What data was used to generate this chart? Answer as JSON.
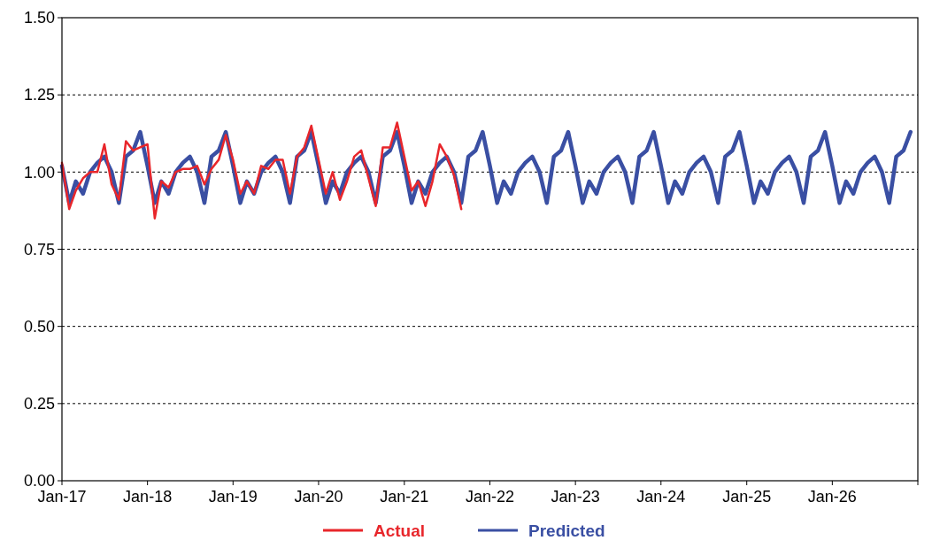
{
  "chart_data": {
    "type": "line",
    "x": [
      "2017-01",
      "2017-02",
      "2017-03",
      "2017-04",
      "2017-05",
      "2017-06",
      "2017-07",
      "2017-08",
      "2017-09",
      "2017-10",
      "2017-11",
      "2017-12",
      "2018-01",
      "2018-02",
      "2018-03",
      "2018-04",
      "2018-05",
      "2018-06",
      "2018-07",
      "2018-08",
      "2018-09",
      "2018-10",
      "2018-11",
      "2018-12",
      "2019-01",
      "2019-02",
      "2019-03",
      "2019-04",
      "2019-05",
      "2019-06",
      "2019-07",
      "2019-08",
      "2019-09",
      "2019-10",
      "2019-11",
      "2019-12",
      "2020-01",
      "2020-02",
      "2020-03",
      "2020-04",
      "2020-05",
      "2020-06",
      "2020-07",
      "2020-08",
      "2020-09",
      "2020-10",
      "2020-11",
      "2020-12",
      "2021-01",
      "2021-02",
      "2021-03",
      "2021-04",
      "2021-05",
      "2021-06",
      "2021-07",
      "2021-08",
      "2021-09",
      "2021-10",
      "2021-11",
      "2021-12",
      "2022-01",
      "2022-02",
      "2022-03",
      "2022-04",
      "2022-05",
      "2022-06",
      "2022-07",
      "2022-08",
      "2022-09",
      "2022-10",
      "2022-11",
      "2022-12",
      "2023-01",
      "2023-02",
      "2023-03",
      "2023-04",
      "2023-05",
      "2023-06",
      "2023-07",
      "2023-08",
      "2023-09",
      "2023-10",
      "2023-11",
      "2023-12",
      "2024-01",
      "2024-02",
      "2024-03",
      "2024-04",
      "2024-05",
      "2024-06",
      "2024-07",
      "2024-08",
      "2024-09",
      "2024-10",
      "2024-11",
      "2024-12",
      "2025-01",
      "2025-02",
      "2025-03",
      "2025-04",
      "2025-05",
      "2025-06",
      "2025-07",
      "2025-08",
      "2025-09",
      "2025-10",
      "2025-11",
      "2025-12",
      "2026-01",
      "2026-02",
      "2026-03",
      "2026-04",
      "2026-05",
      "2026-06",
      "2026-07",
      "2026-08",
      "2026-09",
      "2026-10",
      "2026-11",
      "2026-12"
    ],
    "series": [
      {
        "name": "Predicted",
        "color": "#3a4fa3",
        "values": [
          1.02,
          0.9,
          0.97,
          0.93,
          1.0,
          1.03,
          1.05,
          1.0,
          0.9,
          1.05,
          1.07,
          1.13,
          1.02,
          0.9,
          0.97,
          0.93,
          1.0,
          1.03,
          1.05,
          1.0,
          0.9,
          1.05,
          1.07,
          1.13,
          1.02,
          0.9,
          0.97,
          0.93,
          1.0,
          1.03,
          1.05,
          1.0,
          0.9,
          1.05,
          1.07,
          1.13,
          1.02,
          0.9,
          0.97,
          0.93,
          1.0,
          1.03,
          1.05,
          1.0,
          0.9,
          1.05,
          1.07,
          1.13,
          1.02,
          0.9,
          0.97,
          0.93,
          1.0,
          1.03,
          1.05,
          1.0,
          0.9,
          1.05,
          1.07,
          1.13,
          1.02,
          0.9,
          0.97,
          0.93,
          1.0,
          1.03,
          1.05,
          1.0,
          0.9,
          1.05,
          1.07,
          1.13,
          1.02,
          0.9,
          0.97,
          0.93,
          1.0,
          1.03,
          1.05,
          1.0,
          0.9,
          1.05,
          1.07,
          1.13,
          1.02,
          0.9,
          0.97,
          0.93,
          1.0,
          1.03,
          1.05,
          1.0,
          0.9,
          1.05,
          1.07,
          1.13,
          1.02,
          0.9,
          0.97,
          0.93,
          1.0,
          1.03,
          1.05,
          1.0,
          0.9,
          1.05,
          1.07,
          1.13,
          1.02,
          0.9,
          0.97,
          0.93,
          1.0,
          1.03,
          1.05,
          1.0,
          0.9,
          1.05,
          1.07,
          1.13
        ]
      },
      {
        "name": "Actual",
        "color": "#e8262b",
        "x": [
          "2017-01",
          "2017-02",
          "2017-03",
          "2017-04",
          "2017-05",
          "2017-06",
          "2017-07",
          "2017-08",
          "2017-09",
          "2017-10",
          "2017-11",
          "2017-12",
          "2018-01",
          "2018-02",
          "2018-03",
          "2018-04",
          "2018-05",
          "2018-06",
          "2018-07",
          "2018-08",
          "2018-09",
          "2018-10",
          "2018-11",
          "2018-12",
          "2019-01",
          "2019-02",
          "2019-03",
          "2019-04",
          "2019-05",
          "2019-06",
          "2019-07",
          "2019-08",
          "2019-09",
          "2019-10",
          "2019-11",
          "2019-12",
          "2020-01",
          "2020-02",
          "2020-03",
          "2020-04",
          "2020-05",
          "2020-06",
          "2020-07",
          "2020-08",
          "2020-09",
          "2020-10",
          "2020-11",
          "2020-12",
          "2021-01",
          "2021-02",
          "2021-03",
          "2021-04",
          "2021-05",
          "2021-06",
          "2021-07",
          "2021-08",
          "2021-09"
        ],
        "values": [
          1.03,
          0.88,
          0.94,
          0.98,
          1.0,
          1.0,
          1.09,
          0.96,
          0.91,
          1.1,
          1.07,
          1.08,
          1.09,
          0.85,
          0.97,
          0.95,
          1.0,
          1.01,
          1.01,
          1.02,
          0.96,
          1.01,
          1.04,
          1.12,
          1.04,
          0.93,
          0.97,
          0.93,
          1.02,
          1.01,
          1.04,
          1.04,
          0.93,
          1.05,
          1.08,
          1.15,
          1.04,
          0.93,
          1.0,
          0.91,
          0.97,
          1.05,
          1.07,
          0.98,
          0.89,
          1.08,
          1.08,
          1.16,
          1.05,
          0.94,
          0.97,
          0.89,
          0.97,
          1.09,
          1.05,
          0.99,
          0.88
        ]
      }
    ],
    "xlim": [
      "2017-01-01",
      "2027-01-01"
    ],
    "xticks": [
      {
        "value": "2017-01-01",
        "label": "Jan-17"
      },
      {
        "value": "2018-01-01",
        "label": "Jan-18"
      },
      {
        "value": "2019-01-01",
        "label": "Jan-19"
      },
      {
        "value": "2020-01-01",
        "label": "Jan-20"
      },
      {
        "value": "2021-01-01",
        "label": "Jan-21"
      },
      {
        "value": "2022-01-01",
        "label": "Jan-22"
      },
      {
        "value": "2023-01-01",
        "label": "Jan-23"
      },
      {
        "value": "2024-01-01",
        "label": "Jan-24"
      },
      {
        "value": "2025-01-01",
        "label": "Jan-25"
      },
      {
        "value": "2026-01-01",
        "label": "Jan-26"
      },
      {
        "value": "2027-01-01",
        "label": null
      }
    ],
    "ylim": [
      0,
      1.5
    ],
    "yticks": [
      {
        "value": 0,
        "label": "0.00"
      },
      {
        "value": 0.25,
        "label": "0.25"
      },
      {
        "value": 0.5,
        "label": "0.50"
      },
      {
        "value": 0.75,
        "label": "0.75"
      },
      {
        "value": 1,
        "label": "1.00"
      },
      {
        "value": 1.25,
        "label": "1.25"
      },
      {
        "value": 1.5,
        "label": "1.50"
      }
    ],
    "grid": "y",
    "legend": "bottom",
    "marker": "none",
    "line_style": "solid"
  }
}
